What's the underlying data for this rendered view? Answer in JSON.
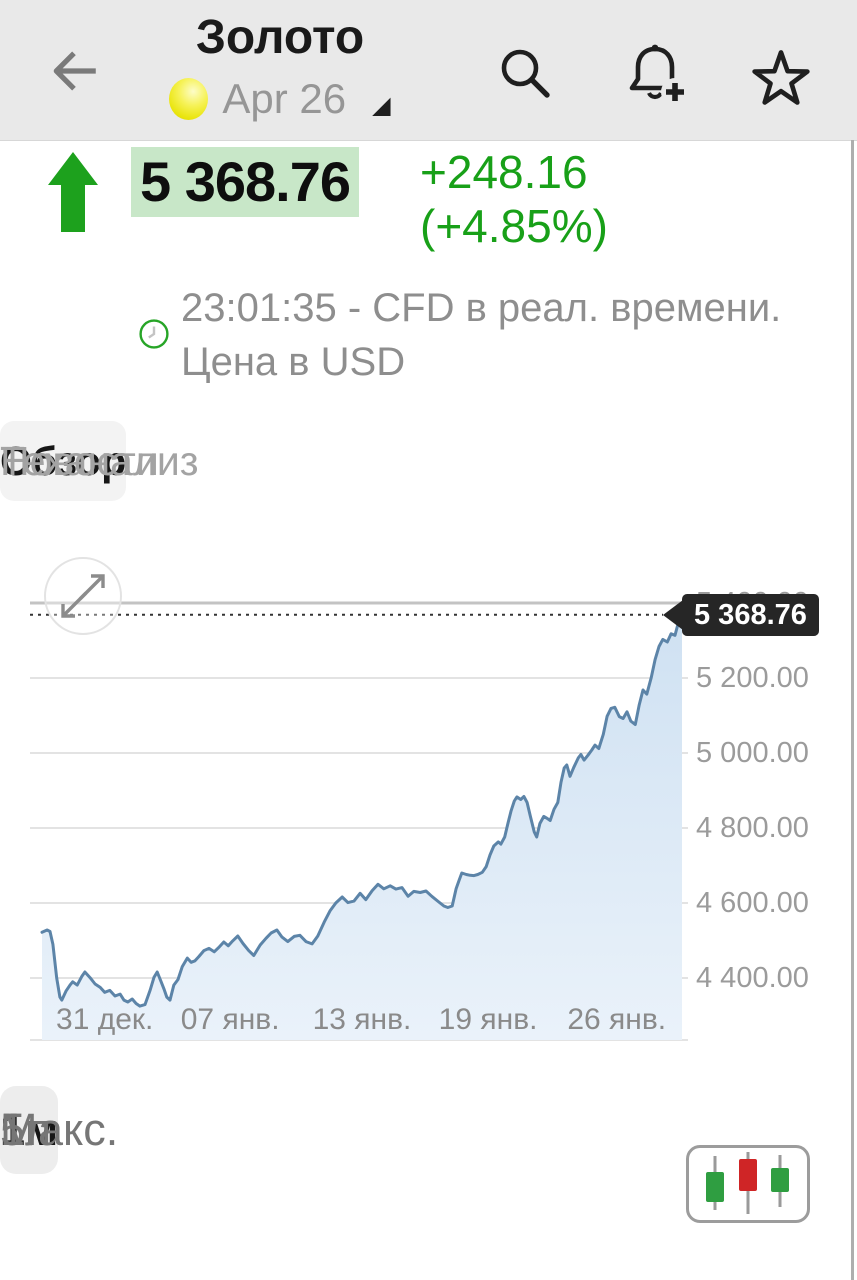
{
  "header": {
    "title": "Золото",
    "contract_label": "Apr 26",
    "icons": [
      "back-arrow",
      "gold-coin",
      "dropdown-caret",
      "search",
      "alert-add-bell",
      "favorite-star"
    ]
  },
  "price": {
    "value": "5 368.76",
    "change": "+248.16",
    "change_pct": "(+4.85%)",
    "direction": "up",
    "info_line1": "23:01:35 - CFD в реал. времени.",
    "info_line2": "Цена в USD",
    "accent_green": "#18a018",
    "highlight_bg": "#c8e7c8"
  },
  "tabs": [
    {
      "label": "Обзор",
      "active": true
    },
    {
      "label": "Теханализ",
      "active": false
    },
    {
      "label": "Новости",
      "active": false
    }
  ],
  "chart_data": {
    "type": "area",
    "instrument": "Золото CFD",
    "currency": "USD",
    "legend_position": "none",
    "grid": true,
    "last_price_value": 5368.76,
    "last_price_label": "5 368.76",
    "line_color": "#5c84a8",
    "fill_top": "#cfe1f2",
    "fill_bottom": "#eaf2fa",
    "ylim": [
      4250,
      5400
    ],
    "y_ticks": [
      {
        "value": 5400,
        "label": "5 400.00"
      },
      {
        "value": 5200,
        "label": "5 200.00"
      },
      {
        "value": 5000,
        "label": "5 000.00"
      },
      {
        "value": 4800,
        "label": "4 800.00"
      },
      {
        "value": 4600,
        "label": "4 600.00"
      },
      {
        "value": 4400,
        "label": "4 400.00"
      }
    ],
    "x_ticks": [
      {
        "label": "31 дек.",
        "f": 0.098
      },
      {
        "label": "07 янв.",
        "f": 0.294
      },
      {
        "label": "13 янв.",
        "f": 0.5
      },
      {
        "label": "19 янв.",
        "f": 0.697
      },
      {
        "label": "26 янв.",
        "f": 0.898
      }
    ],
    "series": [
      {
        "name": "Золото CFD",
        "points": [
          [
            0,
            4522
          ],
          [
            0.008,
            4528
          ],
          [
            0.0125,
            4524
          ],
          [
            0.017,
            4490
          ],
          [
            0.023,
            4400
          ],
          [
            0.028,
            4349
          ],
          [
            0.031,
            4341
          ],
          [
            0.0375,
            4365
          ],
          [
            0.044,
            4382
          ],
          [
            0.048,
            4390
          ],
          [
            0.055,
            4381
          ],
          [
            0.0625,
            4405
          ],
          [
            0.067,
            4416
          ],
          [
            0.075,
            4401
          ],
          [
            0.083,
            4384
          ],
          [
            0.091,
            4375
          ],
          [
            0.098,
            4362
          ],
          [
            0.106,
            4367
          ],
          [
            0.114,
            4352
          ],
          [
            0.122,
            4357
          ],
          [
            0.128,
            4341
          ],
          [
            0.134,
            4336
          ],
          [
            0.141,
            4344
          ],
          [
            0.147,
            4332
          ],
          [
            0.153,
            4325
          ],
          [
            0.161,
            4329
          ],
          [
            0.169,
            4368
          ],
          [
            0.175,
            4402
          ],
          [
            0.18,
            4416
          ],
          [
            0.186,
            4391
          ],
          [
            0.191,
            4369
          ],
          [
            0.195,
            4349
          ],
          [
            0.2,
            4341
          ],
          [
            0.206,
            4381
          ],
          [
            0.2125,
            4396
          ],
          [
            0.219,
            4430
          ],
          [
            0.227,
            4453
          ],
          [
            0.233,
            4442
          ],
          [
            0.239,
            4446
          ],
          [
            0.245,
            4457
          ],
          [
            0.253,
            4473
          ],
          [
            0.261,
            4479
          ],
          [
            0.269,
            4470
          ],
          [
            0.277,
            4483
          ],
          [
            0.284,
            4496
          ],
          [
            0.291,
            4486
          ],
          [
            0.298,
            4499
          ],
          [
            0.306,
            4512
          ],
          [
            0.314,
            4492
          ],
          [
            0.323,
            4473
          ],
          [
            0.331,
            4460
          ],
          [
            0.341,
            4488
          ],
          [
            0.35,
            4506
          ],
          [
            0.358,
            4520
          ],
          [
            0.367,
            4528
          ],
          [
            0.375,
            4509
          ],
          [
            0.384,
            4497
          ],
          [
            0.394,
            4511
          ],
          [
            0.403,
            4514
          ],
          [
            0.4125,
            4497
          ],
          [
            0.422,
            4491
          ],
          [
            0.431,
            4512
          ],
          [
            0.441,
            4549
          ],
          [
            0.45,
            4579
          ],
          [
            0.459,
            4600
          ],
          [
            0.469,
            4616
          ],
          [
            0.478,
            4601
          ],
          [
            0.4875,
            4605
          ],
          [
            0.497,
            4626
          ],
          [
            0.506,
            4609
          ],
          [
            0.516,
            4633
          ],
          [
            0.525,
            4650
          ],
          [
            0.534,
            4638
          ],
          [
            0.544,
            4646
          ],
          [
            0.553,
            4637
          ],
          [
            0.5625,
            4641
          ],
          [
            0.572,
            4618
          ],
          [
            0.581,
            4631
          ],
          [
            0.591,
            4628
          ],
          [
            0.6,
            4632
          ],
          [
            0.609,
            4618
          ],
          [
            0.619,
            4604
          ],
          [
            0.628,
            4592
          ],
          [
            0.634,
            4588
          ],
          [
            0.641,
            4592
          ],
          [
            0.647,
            4638
          ],
          [
            0.652,
            4662
          ],
          [
            0.656,
            4680
          ],
          [
            0.663,
            4676
          ],
          [
            0.669,
            4674
          ],
          [
            0.675,
            4673
          ],
          [
            0.681,
            4676
          ],
          [
            0.688,
            4682
          ],
          [
            0.694,
            4697
          ],
          [
            0.7,
            4728
          ],
          [
            0.706,
            4752
          ],
          [
            0.713,
            4763
          ],
          [
            0.717,
            4757
          ],
          [
            0.723,
            4776
          ],
          [
            0.728,
            4812
          ],
          [
            0.733,
            4846
          ],
          [
            0.738,
            4872
          ],
          [
            0.742,
            4883
          ],
          [
            0.748,
            4876
          ],
          [
            0.753,
            4884
          ],
          [
            0.758,
            4868
          ],
          [
            0.763,
            4832
          ],
          [
            0.769,
            4790
          ],
          [
            0.773,
            4776
          ],
          [
            0.778,
            4812
          ],
          [
            0.784,
            4831
          ],
          [
            0.789,
            4826
          ],
          [
            0.794,
            4820
          ],
          [
            0.8,
            4850
          ],
          [
            0.806,
            4868
          ],
          [
            0.811,
            4922
          ],
          [
            0.816,
            4960
          ],
          [
            0.82,
            4968
          ],
          [
            0.825,
            4938
          ],
          [
            0.831,
            4962
          ],
          [
            0.838,
            4987
          ],
          [
            0.842,
            4996
          ],
          [
            0.847,
            4981
          ],
          [
            0.853,
            4994
          ],
          [
            0.859,
            5008
          ],
          [
            0.864,
            5021
          ],
          [
            0.87,
            5012
          ],
          [
            0.877,
            5050
          ],
          [
            0.883,
            5098
          ],
          [
            0.889,
            5119
          ],
          [
            0.895,
            5122
          ],
          [
            0.902,
            5097
          ],
          [
            0.908,
            5092
          ],
          [
            0.914,
            5110
          ],
          [
            0.92,
            5085
          ],
          [
            0.927,
            5076
          ],
          [
            0.933,
            5127
          ],
          [
            0.939,
            5168
          ],
          [
            0.945,
            5157
          ],
          [
            0.952,
            5202
          ],
          [
            0.958,
            5249
          ],
          [
            0.964,
            5284
          ],
          [
            0.97,
            5303
          ],
          [
            0.977,
            5296
          ],
          [
            0.983,
            5318
          ],
          [
            0.989,
            5314
          ],
          [
            0.995,
            5352
          ],
          [
            1,
            5369
          ]
        ]
      }
    ]
  },
  "ranges": {
    "options": [
      "1д",
      "1н",
      "1м",
      "1г",
      "5л",
      "Макс."
    ],
    "selected": "1м"
  },
  "controls": {
    "chart_type_icon": "candlestick-chart"
  }
}
